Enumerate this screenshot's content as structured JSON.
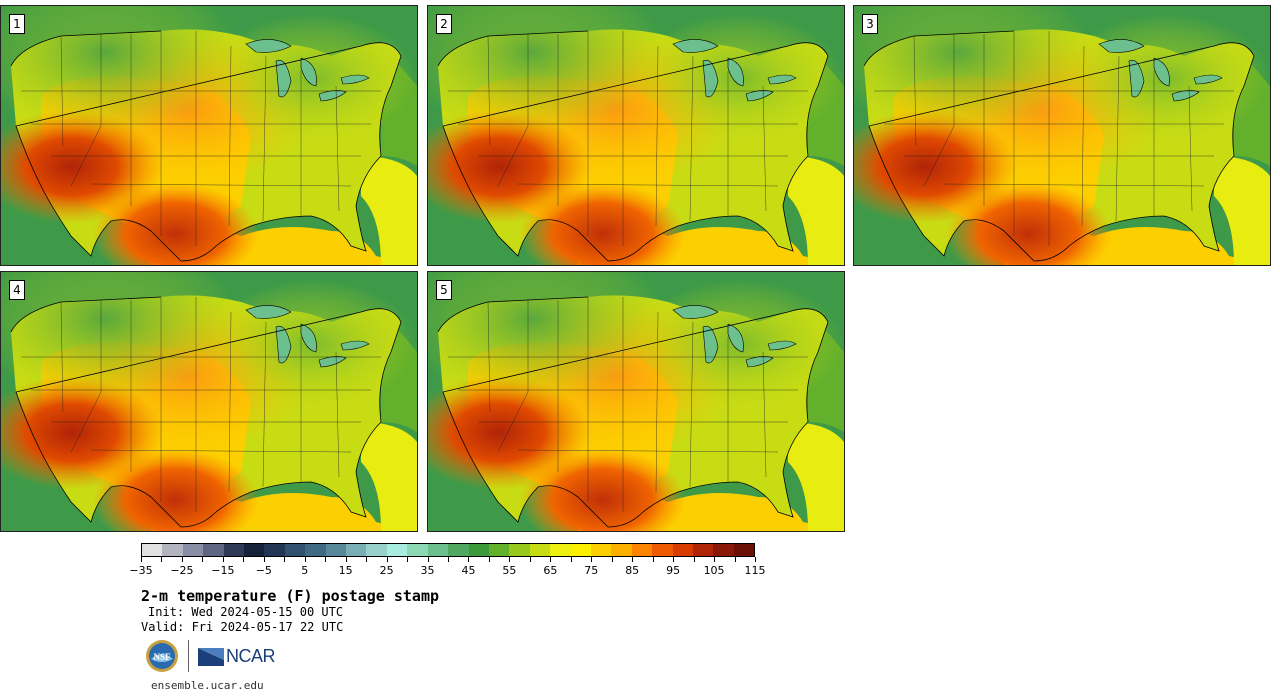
{
  "stamps": [
    {
      "number": "1"
    },
    {
      "number": "2"
    },
    {
      "number": "3"
    },
    {
      "number": "4"
    },
    {
      "number": "5"
    }
  ],
  "colorbar": {
    "colors": [
      "#e1e1e1",
      "#b4b4c0",
      "#8a8ea4",
      "#5e6684",
      "#2e3a58",
      "#162238",
      "#223654",
      "#325070",
      "#406a84",
      "#56889a",
      "#78aeb4",
      "#98d0cc",
      "#a8ece0",
      "#8cd8b4",
      "#6cc08e",
      "#50a860",
      "#3c9a3a",
      "#62b02c",
      "#98c81c",
      "#c8dc14",
      "#f0f010",
      "#fcf000",
      "#fcd000",
      "#fcb000",
      "#fc8400",
      "#f05a00",
      "#d83c00",
      "#b02408",
      "#8a1808",
      "#6a1004"
    ],
    "tick_labels": [
      "−35",
      "−25",
      "−15",
      "−5",
      "5",
      "15",
      "25",
      "35",
      "45",
      "55",
      "65",
      "75",
      "85",
      "95",
      "105",
      "115"
    ]
  },
  "title": "2-m temperature (F) postage stamp",
  "init": "Init: Wed 2024-05-15 00 UTC",
  "valid": "Valid: Fri 2024-05-17 22 UTC",
  "logos": {
    "nsf_text": "NSF",
    "ncar_text": "NCAR"
  },
  "site": "ensemble.ucar.edu"
}
